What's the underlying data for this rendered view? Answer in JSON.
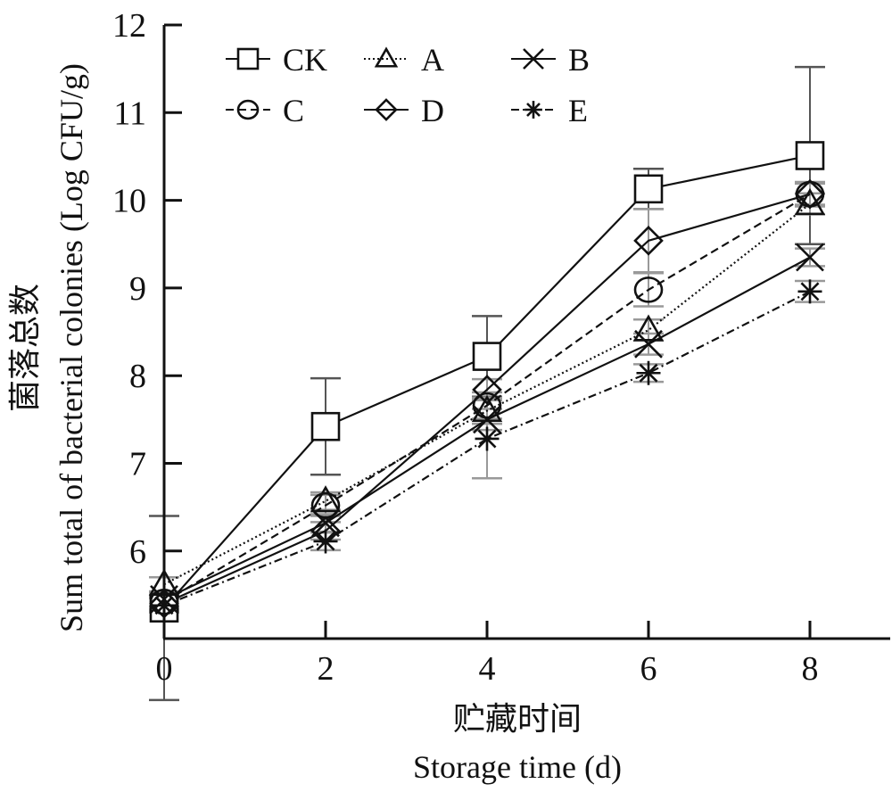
{
  "chart_data": {
    "type": "line",
    "title": "",
    "xlabel_cn": "贮藏时间",
    "xlabel": "Storage time (d)",
    "ylabel_cn": "菌落总数",
    "ylabel": "Sum total of bacterial colonies (Log CFU/g)",
    "x": [
      0,
      2,
      4,
      6,
      8
    ],
    "x_ticks": [
      "0",
      "2",
      "4",
      "6",
      "8"
    ],
    "y_ticks": [
      "6",
      "7",
      "8",
      "9",
      "10",
      "11",
      "12"
    ],
    "xlim": [
      0,
      9
    ],
    "ylim": [
      5,
      12
    ],
    "grid": false,
    "legend_position": "top-left",
    "series": [
      {
        "name": "CK",
        "marker": "square",
        "linestyle": "solid",
        "values": [
          5.35,
          7.42,
          8.22,
          10.13,
          10.51
        ],
        "errors": [
          1.05,
          0.55,
          0.46,
          0.23,
          1.01
        ]
      },
      {
        "name": "A",
        "marker": "triangle",
        "linestyle": "dotted",
        "values": [
          5.62,
          6.57,
          7.6,
          8.52,
          9.96
        ],
        "errors": [
          0.08,
          0.1,
          0.15,
          0.12,
          0.12
        ]
      },
      {
        "name": "B",
        "marker": "x",
        "linestyle": "solid",
        "values": [
          5.45,
          6.32,
          7.5,
          8.36,
          9.35
        ],
        "errors": [
          0.08,
          0.1,
          0.12,
          0.12,
          0.1
        ]
      },
      {
        "name": "C",
        "marker": "circle",
        "linestyle": "dashed",
        "values": [
          5.42,
          6.52,
          7.66,
          8.98,
          10.07
        ],
        "errors": [
          0.08,
          0.12,
          0.15,
          0.19,
          0.14
        ]
      },
      {
        "name": "D",
        "marker": "diamond",
        "linestyle": "solid",
        "values": [
          5.4,
          6.23,
          7.84,
          9.54,
          10.07
        ],
        "errors": [
          0.08,
          0.1,
          0.12,
          0.36,
          0.12
        ]
      },
      {
        "name": "E",
        "marker": "star",
        "linestyle": "dashdot",
        "values": [
          5.38,
          6.11,
          7.28,
          8.03,
          8.96
        ],
        "errors": [
          0.08,
          0.1,
          0.45,
          0.1,
          0.12
        ]
      }
    ]
  }
}
